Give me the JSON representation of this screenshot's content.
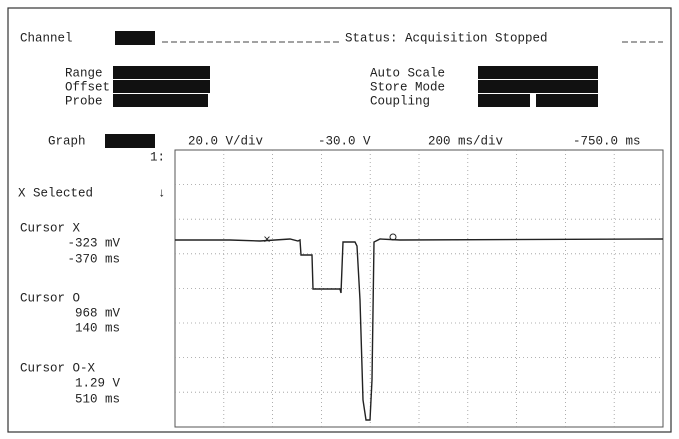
{
  "header": {
    "channel_label": "Channel",
    "status": "Status: Acquisition Stopped"
  },
  "settings": {
    "range": "Range",
    "offset": "Offset",
    "probe": "Probe",
    "auto_scale": "Auto Scale",
    "store_mode": "Store Mode",
    "coupling": "Coupling"
  },
  "graph_bar": {
    "label": "Graph",
    "volts_per_div": "20.0 V/div",
    "offset": "-30.0 V",
    "time_per_div": "200 ms/div",
    "delay": "-750.0 ms"
  },
  "trace_label": "1:",
  "selection": {
    "label": "X Selected",
    "arrow": "↓"
  },
  "cursors": [
    {
      "label": "Cursor X",
      "voltage": "-323 mV",
      "time": "-370 ms"
    },
    {
      "label": "Cursor O",
      "voltage": "968 mV",
      "time": "140 ms"
    },
    {
      "label": "Cursor O-X",
      "voltage": "1.29 V",
      "time": "510 ms"
    }
  ]
}
